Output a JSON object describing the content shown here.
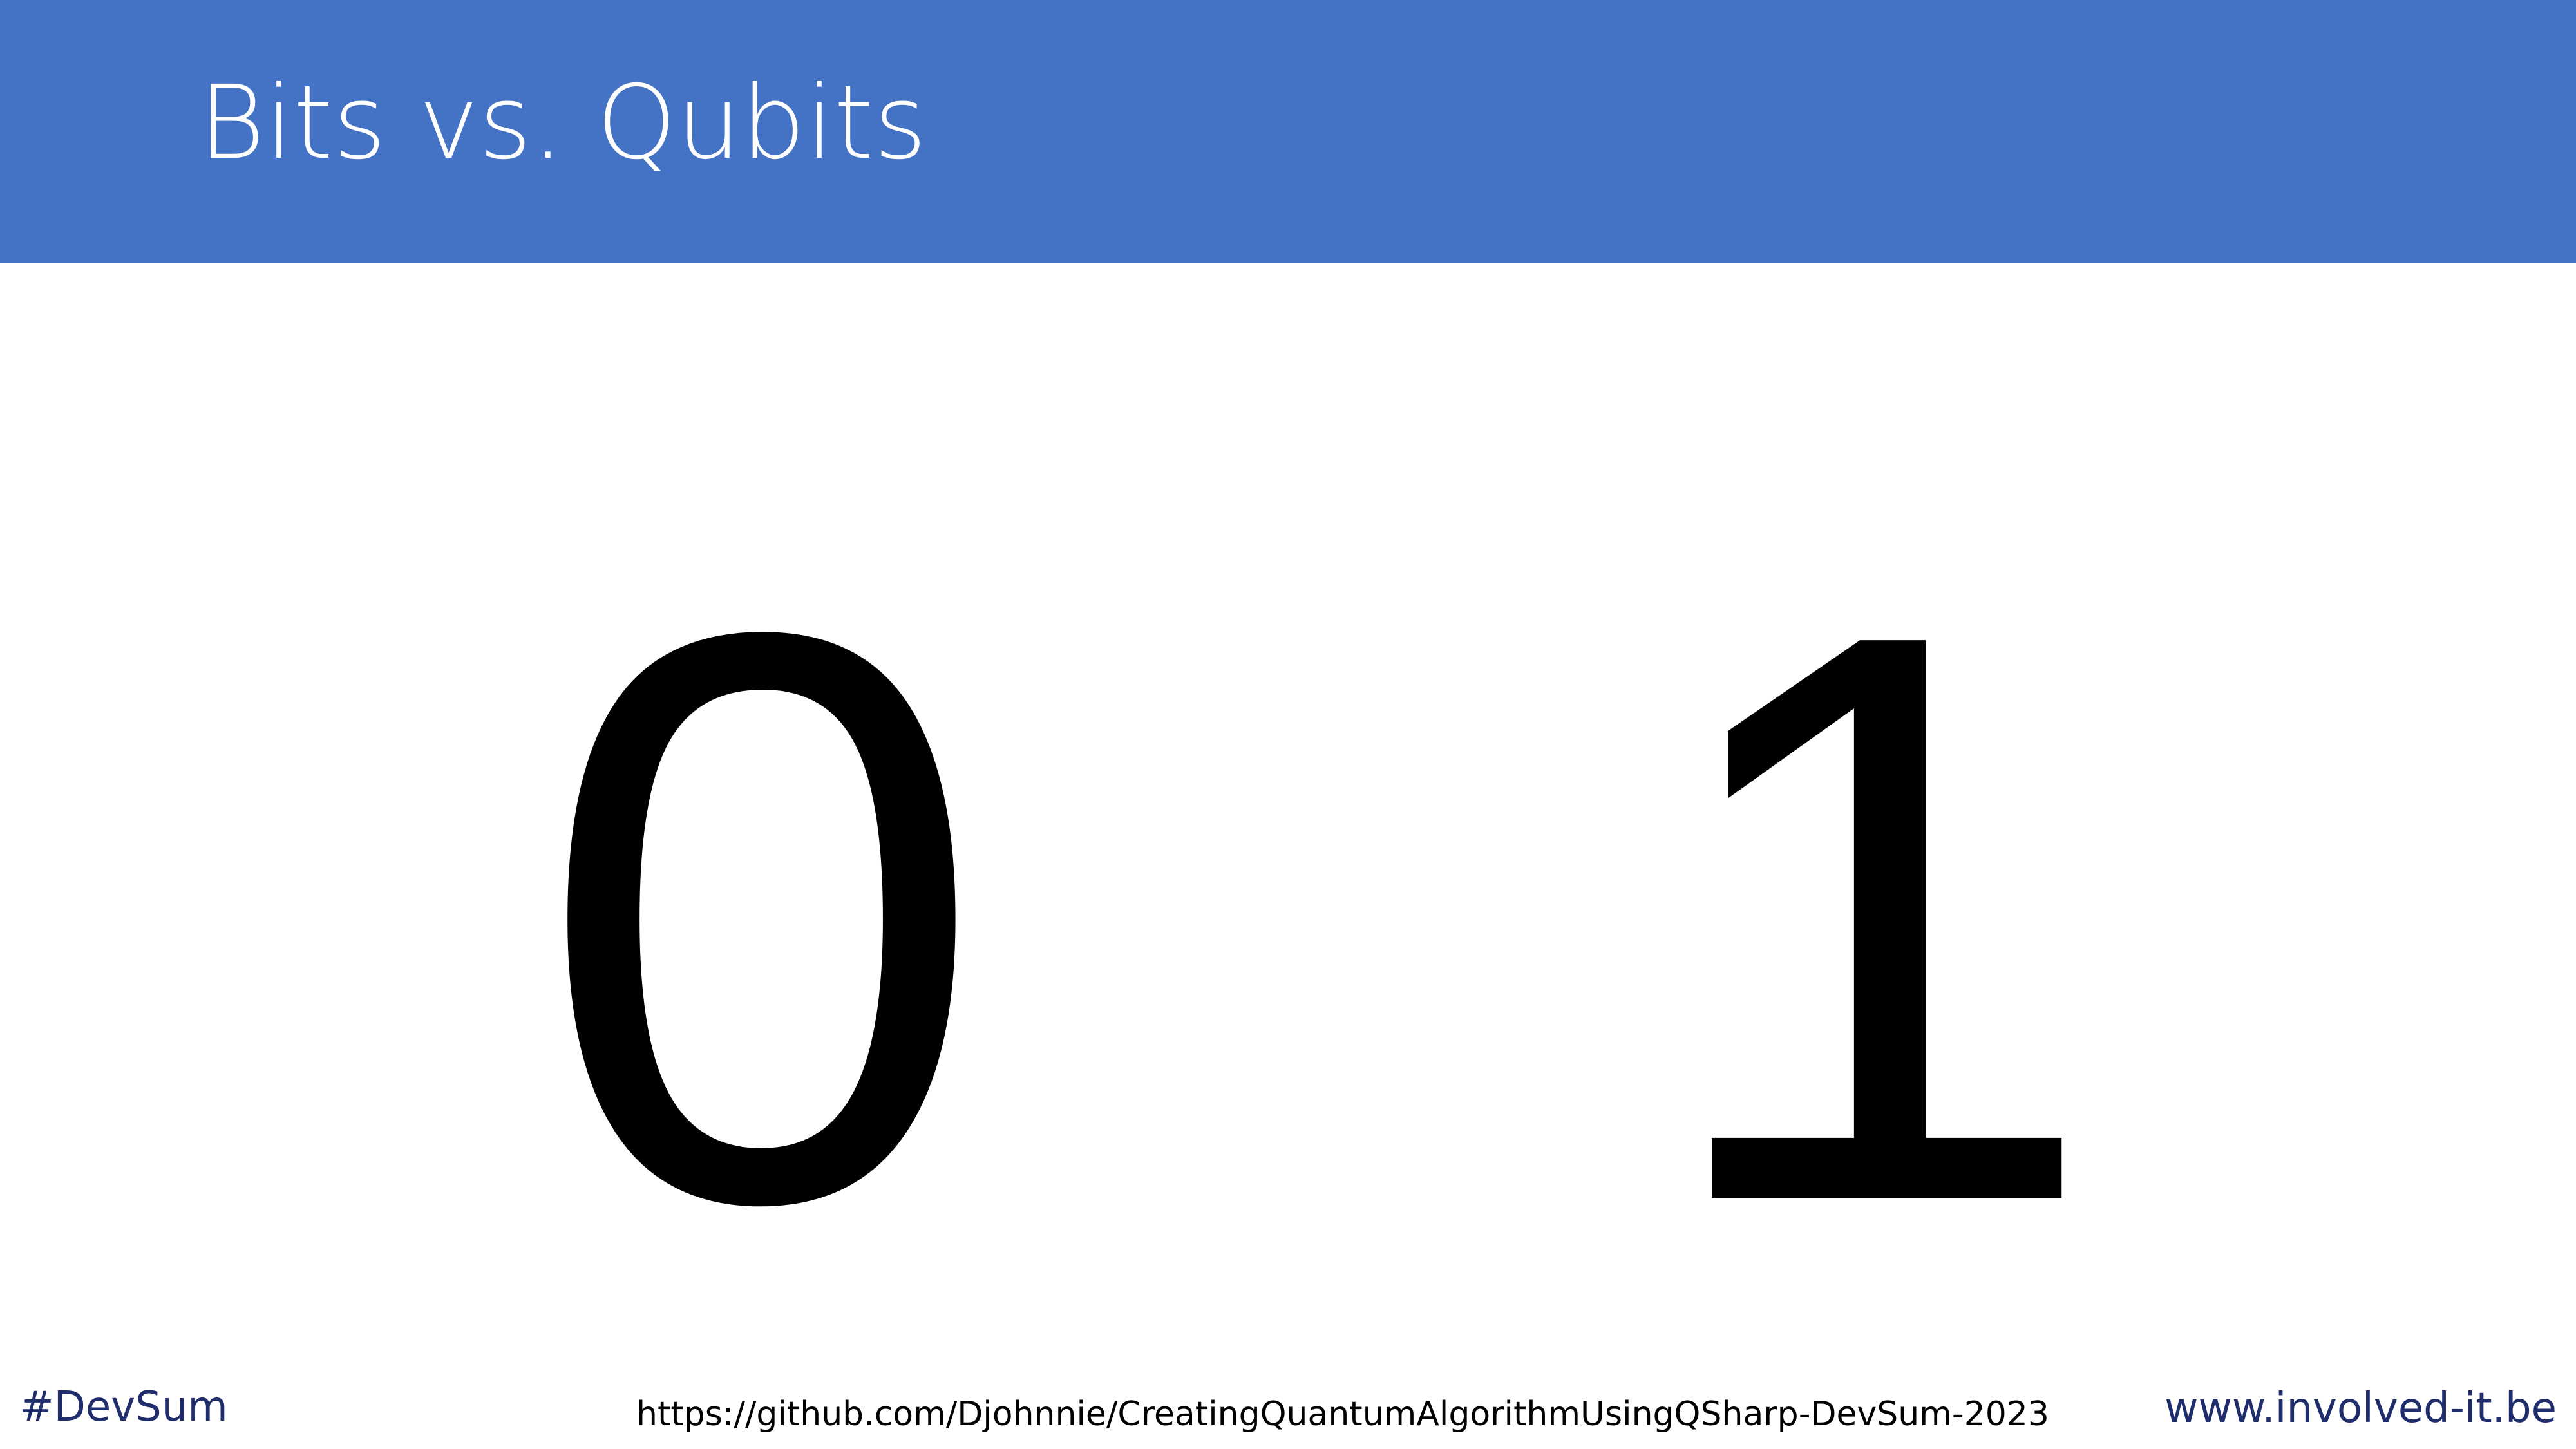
{
  "slide": {
    "title": "Bits vs. Qubits",
    "header_color": "#4472C4",
    "bits": [
      "0",
      "1"
    ]
  },
  "footer": {
    "hashtag": "#DevSum",
    "repo_url": "https://github.com/Djohnnie/CreatingQuantumAlgorithmUsingQSharp-DevSum-2023",
    "site_url": "www.involved-it.be",
    "accent_color": "#1F2D6D"
  }
}
